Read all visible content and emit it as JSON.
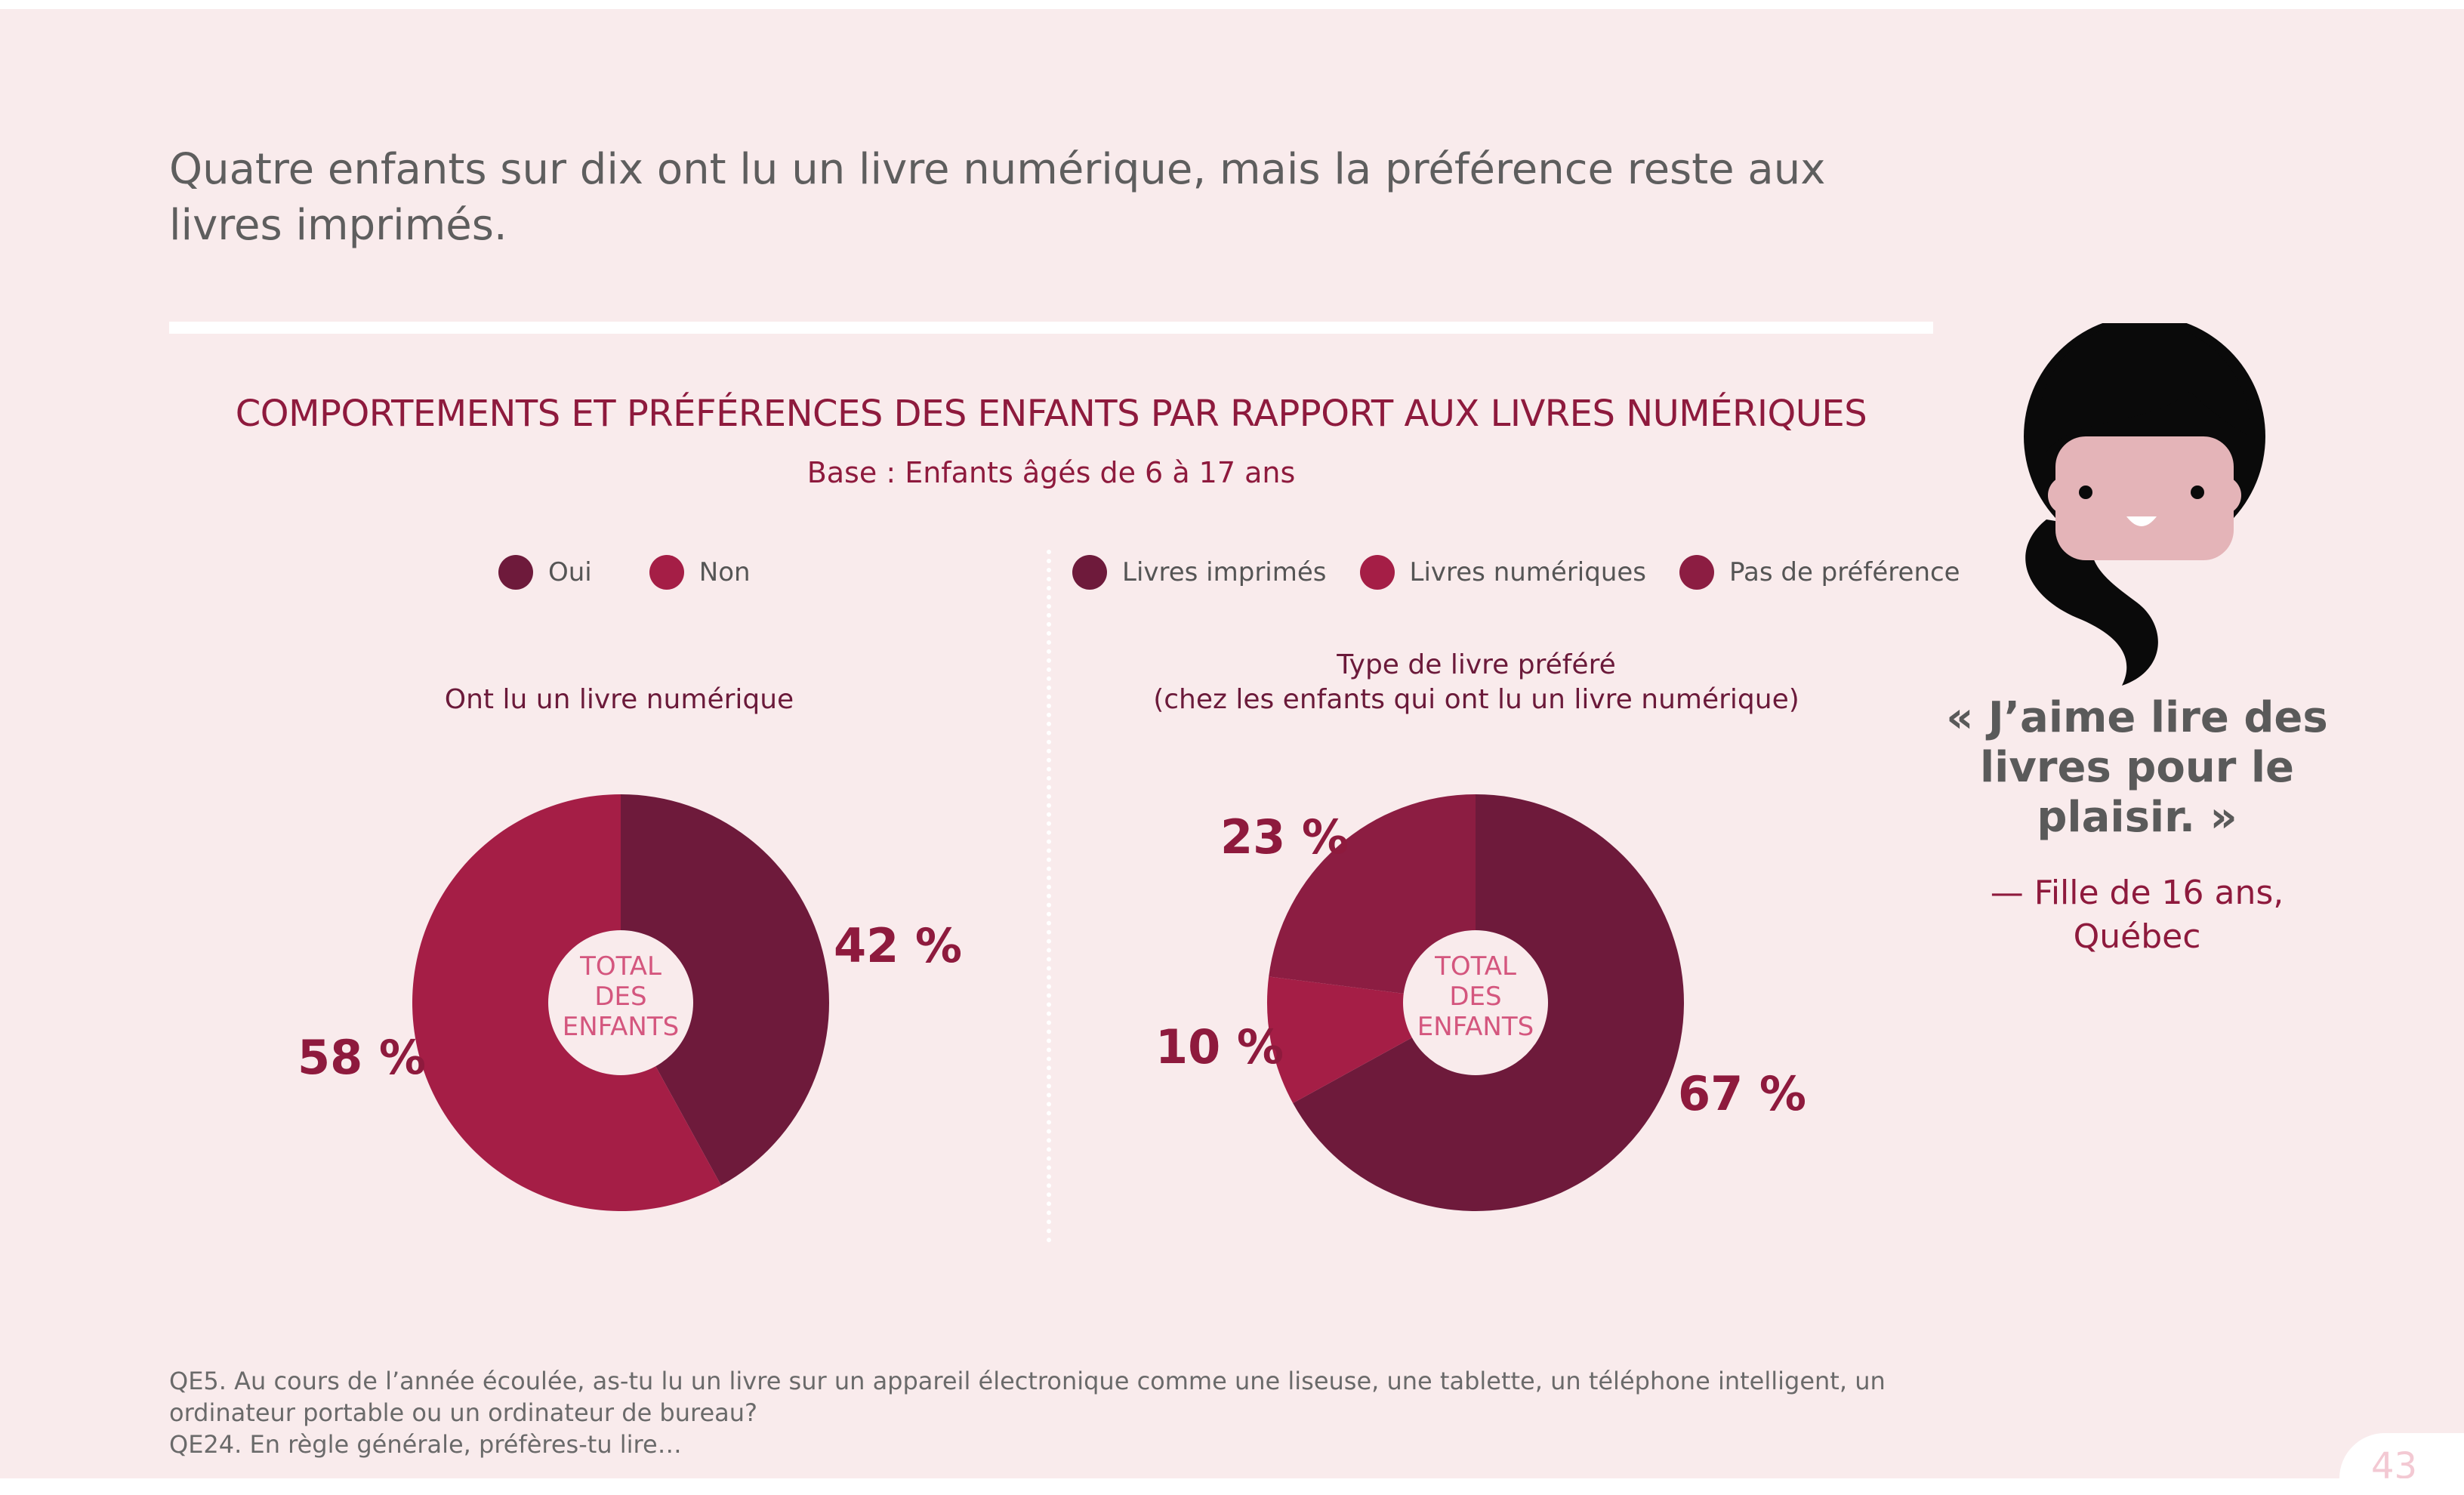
{
  "headline": "Quatre enfants sur dix ont lu un livre numérique, mais la préférence reste aux livres imprimés.",
  "colors": {
    "dark": "#6e1a3b",
    "mid": "#a51e46",
    "medium": "#8c1d42",
    "accent_text": "#8e1a3d",
    "center_label": "#d4567e"
  },
  "chart_data": [
    {
      "type": "pie",
      "title": "COMPORTEMENTS ET PRÉFÉRENCES DES ENFANTS PAR RAPPORT AUX LIVRES NUMÉRIQUES",
      "subtitle": "Base : Enfants âgés de 6 à 17 ans",
      "chart_subtitle": "Ont lu un livre numérique",
      "center_label": "TOTAL DES ENFANTS",
      "legend": [
        "Oui",
        "Non"
      ],
      "slices": [
        {
          "label": "Oui",
          "value": 42,
          "display": "42 %",
          "color": "#6e1a3b"
        },
        {
          "label": "Non",
          "value": 58,
          "display": "58 %",
          "color": "#a51e46"
        }
      ]
    },
    {
      "type": "pie",
      "chart_subtitle_line1": "Type de livre préféré",
      "chart_subtitle_line2": "(chez les enfants qui ont lu un livre numérique)",
      "center_label": "TOTAL DES ENFANTS",
      "legend": [
        "Livres imprimés",
        "Livres numériques",
        "Pas de préférence"
      ],
      "slices": [
        {
          "label": "Livres imprimés",
          "value": 67,
          "display": "67 %",
          "color": "#6e1a3b"
        },
        {
          "label": "Livres numériques",
          "value": 10,
          "display": "10 %",
          "color": "#a51e46"
        },
        {
          "label": "Pas de préférence",
          "value": 23,
          "display": "23 %",
          "color": "#8c1d42"
        }
      ]
    }
  ],
  "center": {
    "line1": "TOTAL",
    "line2": "DES",
    "line3": "ENFANTS"
  },
  "quote": {
    "text": "« J’aime lire des livres pour le plaisir. »",
    "attr_line1": "— Fille de 16 ans,",
    "attr_line2": "Québec"
  },
  "footnote": {
    "line1": "QE5. Au cours de l’année écoulée, as-tu lu un livre sur un appareil électronique comme une liseuse, une tablette, un téléphone intelligent, un ordinateur portable ou un ordinateur de bureau?",
    "line2": "QE24. En règle générale, préfères-tu lire…"
  },
  "page_number": "43"
}
